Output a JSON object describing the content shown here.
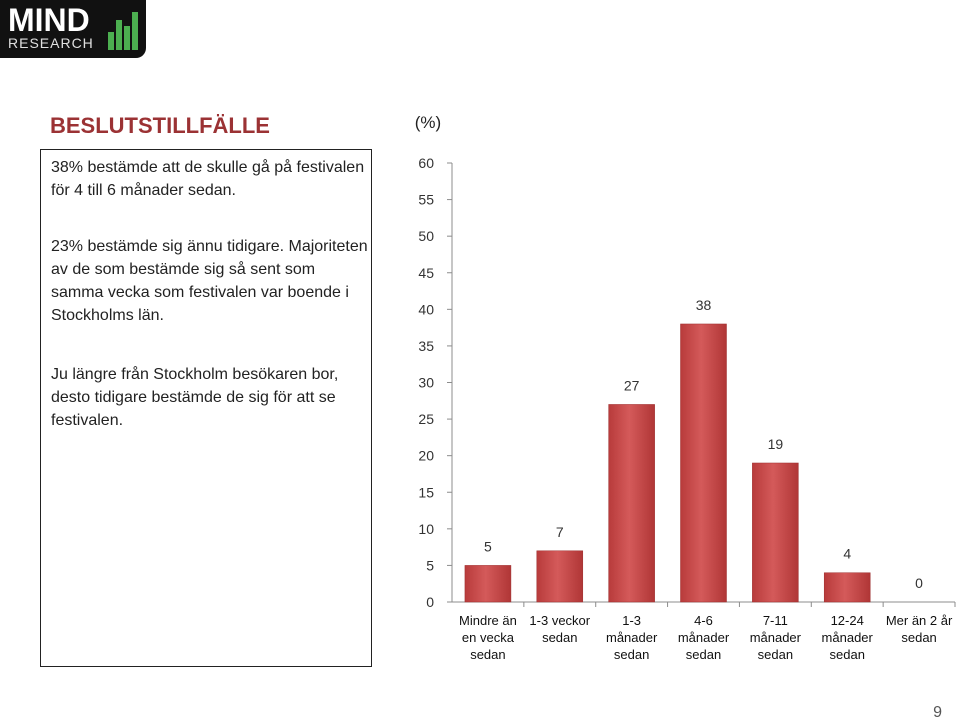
{
  "logo": {
    "line1": "MIND",
    "line2": "RESEARCH"
  },
  "heading": "BESLUTSTILLFÄLLE",
  "paragraphs": [
    "38% bestämde att de skulle gå på festivalen för 4 till 6 månader sedan.",
    "23% bestämde sig ännu tidigare. Majoriteten av de som bestämde sig så sent som samma vecka som festivalen var boende i Stockholms län.",
    "Ju längre från Stockholm besökaren bor, desto tidigare bestämde de sig för att se festivalen."
  ],
  "page_number": "9",
  "colors": {
    "heading": "#9b3234",
    "bar": "#c94a4a",
    "logo_accent": "#4caf50"
  },
  "chart_data": {
    "type": "bar",
    "unit_label": "(%)",
    "categories": [
      [
        "Mindre än",
        "en vecka",
        "sedan"
      ],
      [
        "1-3 veckor",
        "sedan"
      ],
      [
        "1-3",
        "månader",
        "sedan"
      ],
      [
        "4-6",
        "månader",
        "sedan"
      ],
      [
        "7-11",
        "månader",
        "sedan"
      ],
      [
        "12-24",
        "månader",
        "sedan"
      ],
      [
        "Mer än 2 år",
        "sedan"
      ]
    ],
    "values": [
      5,
      7,
      27,
      38,
      19,
      4,
      0
    ],
    "ylim": [
      0,
      60
    ],
    "yticks": [
      0,
      5,
      10,
      15,
      20,
      25,
      30,
      35,
      40,
      45,
      50,
      55,
      60
    ],
    "grid": false,
    "legend": "none"
  }
}
